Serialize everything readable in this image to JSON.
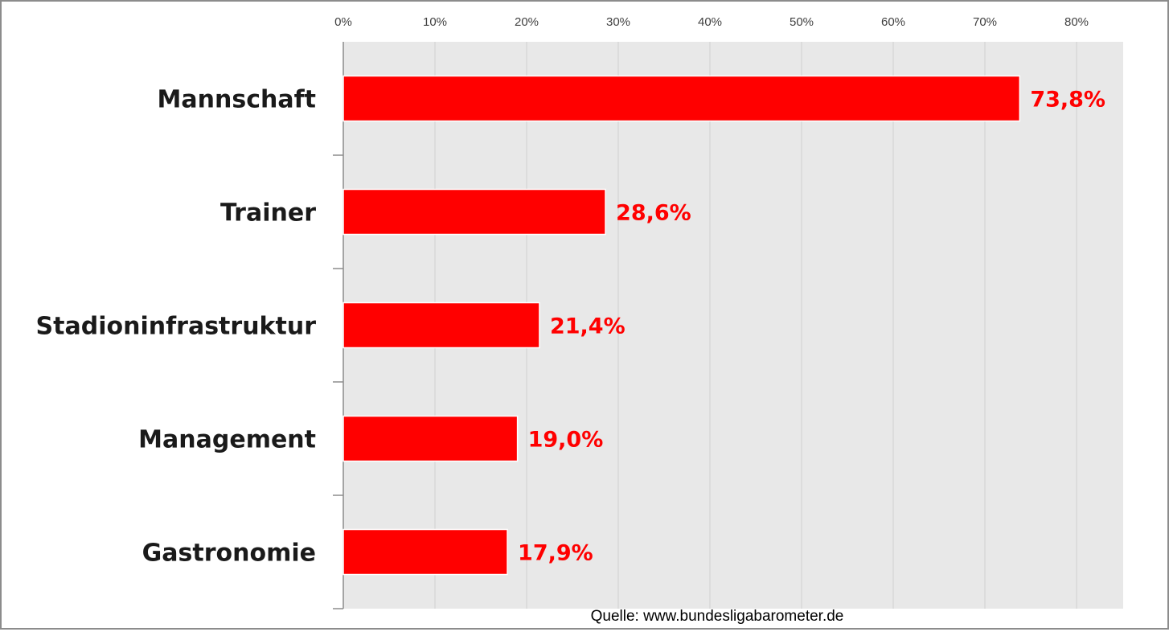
{
  "chart_data": {
    "type": "bar",
    "orientation": "horizontal",
    "categories": [
      "Mannschaft",
      "Trainer",
      "Stadioninfrastruktur",
      "Management",
      "Gastronomie"
    ],
    "values": [
      73.8,
      28.6,
      21.4,
      19.0,
      17.9
    ],
    "value_labels": [
      "73,8%",
      "28,6%",
      "21,4%",
      "19,0%",
      "17,9%"
    ],
    "xlim": [
      0,
      85
    ],
    "x_ticks": [
      0,
      10,
      20,
      30,
      40,
      50,
      60,
      70,
      80
    ],
    "x_tick_labels": [
      "0%",
      "10%",
      "20%",
      "30%",
      "40%",
      "50%",
      "60%",
      "70%",
      "80%"
    ],
    "x_axis_position": "top",
    "grid": true,
    "legend": "none",
    "colors": {
      "bar": "#ff0000",
      "plot_background": "#e8e8e8",
      "gridline": "#d0d0d0",
      "value_label": "#ff0000"
    }
  },
  "source_note": "Quelle: www.bundesligabarometer.de"
}
